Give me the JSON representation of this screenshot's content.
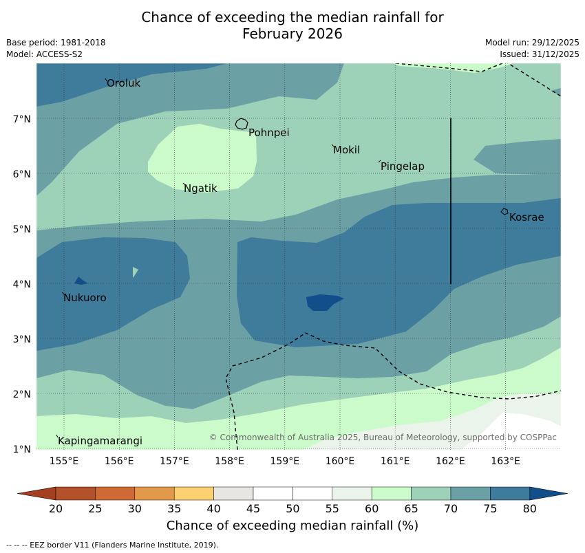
{
  "title_line1": "Chance of exceeding the median rainfall for",
  "title_line2": "February 2026",
  "base_period": "Base period: 1981-2018",
  "model": "Model: ACCESS-S2",
  "model_run": "Model run: 29/12/2025",
  "issued": "Issued: 31/12/2025",
  "copyright": "© Commonwealth of Australia 2025, Bureau of Meteorology, supported by COSPPac",
  "places": [
    {
      "name": "Oroluk",
      "lon": 155.75,
      "lat": 7.6
    },
    {
      "name": "Pohnpei",
      "lon": 158.25,
      "lat": 6.9
    },
    {
      "name": "Mokil",
      "lon": 159.83,
      "lat": 6.7
    },
    {
      "name": "Pingelap",
      "lon": 160.7,
      "lat": 6.2
    },
    {
      "name": "Ngatik",
      "lon": 157.2,
      "lat": 5.8
    },
    {
      "name": "Kosrae",
      "lon": 162.98,
      "lat": 5.3
    },
    {
      "name": "Nukuoro",
      "lon": 154.97,
      "lat": 3.85
    },
    {
      "name": "Kapingamarangi",
      "lon": 154.78,
      "lat": 1.07
    }
  ],
  "lon_ticks": [
    "155°E",
    "156°E",
    "157°E",
    "158°E",
    "159°E",
    "160°E",
    "161°E",
    "162°E",
    "163°E"
  ],
  "lat_ticks": [
    "1°N",
    "2°N",
    "3°N",
    "4°N",
    "5°N",
    "6°N",
    "7°N"
  ],
  "colorbar": {
    "labels": [
      "20",
      "25",
      "30",
      "35",
      "40",
      "45",
      "50",
      "55",
      "60",
      "65",
      "70",
      "75",
      "80"
    ],
    "colors": [
      "#a4401f",
      "#b3522a",
      "#cf6a35",
      "#e3994a",
      "#fbd172",
      "#e7e6e3",
      "#ffffff",
      "#ffffff",
      "#eaf4ea",
      "#cbfbcb",
      "#9dd1b8",
      "#6ba1a5",
      "#3f7b9a",
      "#124e8a"
    ],
    "title": "Chance of exceeding median rainfall (%)"
  },
  "footer": "--  --  -- EEZ border V11 (Flanders Marine Institute, 2019).",
  "chart_data": {
    "type": "contour-map",
    "variable": "Chance of exceeding median rainfall (%)",
    "levels": [
      20,
      25,
      30,
      35,
      40,
      45,
      50,
      55,
      60,
      65,
      70,
      75,
      80
    ],
    "lon_range": [
      154.5,
      164.0
    ],
    "lat_range": [
      1.0,
      8.0
    ]
  }
}
